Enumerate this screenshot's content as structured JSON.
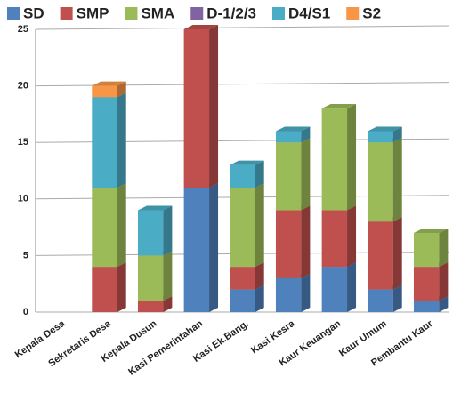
{
  "chart_data": {
    "type": "bar3d_stacked",
    "categories": [
      "Kepala Desa",
      "Sekretaris Desa",
      "Kepala Dusun",
      "Kasi Pemerintahan",
      "Kasi Ek.Bang.",
      "Kasi Kesra",
      "Kaur Keuangan",
      "Kaur Umum",
      "Pembantu Kaur"
    ],
    "series": [
      {
        "name": "SD",
        "color": "#4f81bd",
        "values": [
          0,
          0,
          0,
          11,
          2,
          3,
          4,
          2,
          1
        ]
      },
      {
        "name": "SMP",
        "color": "#c0504d",
        "values": [
          0,
          4,
          1,
          14,
          2,
          6,
          5,
          6,
          3
        ]
      },
      {
        "name": "SMA",
        "color": "#9bbb59",
        "values": [
          0,
          7,
          4,
          0,
          7,
          6,
          9,
          7,
          3
        ]
      },
      {
        "name": "D-1/2/3",
        "color": "#8064a2",
        "values": [
          0,
          0,
          0,
          0,
          0,
          0,
          0,
          0,
          0
        ]
      },
      {
        "name": "D4/S1",
        "color": "#4bacc6",
        "values": [
          0,
          8,
          4,
          0,
          2,
          1,
          0,
          1,
          0
        ]
      },
      {
        "name": "S2",
        "color": "#f79646",
        "values": [
          0,
          1,
          0,
          0,
          0,
          0,
          0,
          0,
          0
        ]
      }
    ],
    "ylim": [
      0,
      25
    ],
    "yticks": [
      0,
      5,
      10,
      15,
      20,
      25
    ],
    "grid": true,
    "legend": "top"
  }
}
